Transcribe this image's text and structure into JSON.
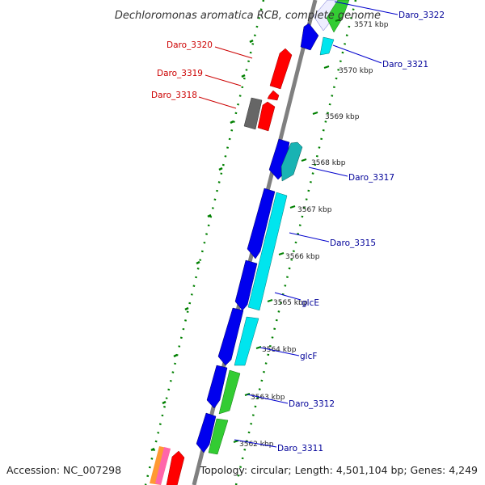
{
  "title": "Dechloromonas aromatica RCB, complete genome",
  "footer": {
    "accession": "Accession: NC_007298",
    "summary": "Topology: circular; Length: 4,501,104 bp; Genes: 4,249"
  },
  "colors": {
    "backbone": "#808080",
    "tick": "#008000",
    "reverse_label": "#cc0000",
    "forward_label": "#000099",
    "blue_gene": "#0000ee",
    "cyan_gene": "#00e5ee",
    "green_gene": "#33cc33",
    "red_gene": "#ff0000",
    "gray_gene": "#666666",
    "teal_gene": "#19b3b3"
  },
  "ticks": [
    "3562 kbp",
    "3563 kbp",
    "3564 kbp",
    "3565 kbp",
    "3566 kbp",
    "3567 kbp",
    "3568 kbp",
    "3569 kbp",
    "3570 kbp",
    "3571 kbp"
  ],
  "gene_labels_forward": [
    "Daro_3322",
    "Daro_3321",
    "Daro_3317",
    "Daro_3315",
    "glcE",
    "glcF",
    "Daro_3312",
    "Daro_3311"
  ],
  "gene_labels_reverse": [
    "Daro_3320",
    "Daro_3319",
    "Daro_3318"
  ]
}
